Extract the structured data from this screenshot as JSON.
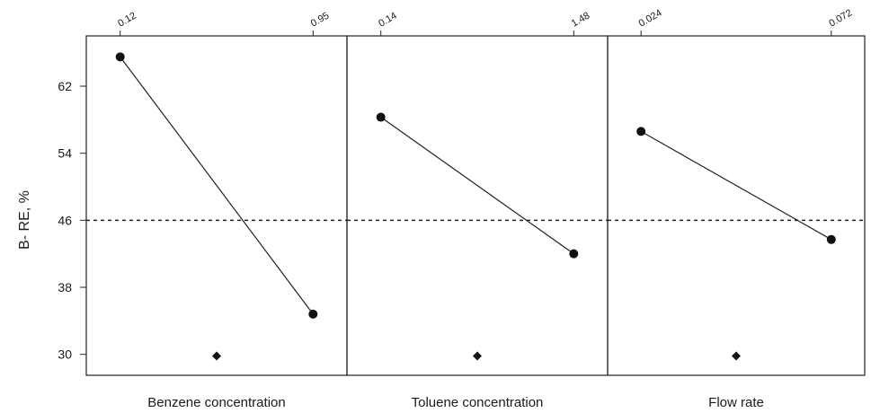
{
  "chart_data": {
    "type": "line",
    "ylabel": "B- RE, %",
    "ylim": [
      27.5,
      68
    ],
    "y_ticks": [
      30,
      38,
      46,
      54,
      62
    ],
    "reference_line": 46,
    "grid": false,
    "legend": "none",
    "panels": [
      {
        "factor": "Benzene concentration",
        "x_levels": [
          "0.12",
          "0.95"
        ],
        "values": [
          65.5,
          34.8
        ],
        "marker": 29.8
      },
      {
        "factor": "Toluene concentration",
        "x_levels": [
          "0.14",
          "1.48"
        ],
        "values": [
          58.3,
          42.0
        ],
        "marker": 29.8
      },
      {
        "factor": "Flow rate",
        "x_levels": [
          "0.024",
          "0.072"
        ],
        "values": [
          56.6,
          43.7
        ],
        "marker": 29.8
      }
    ]
  }
}
